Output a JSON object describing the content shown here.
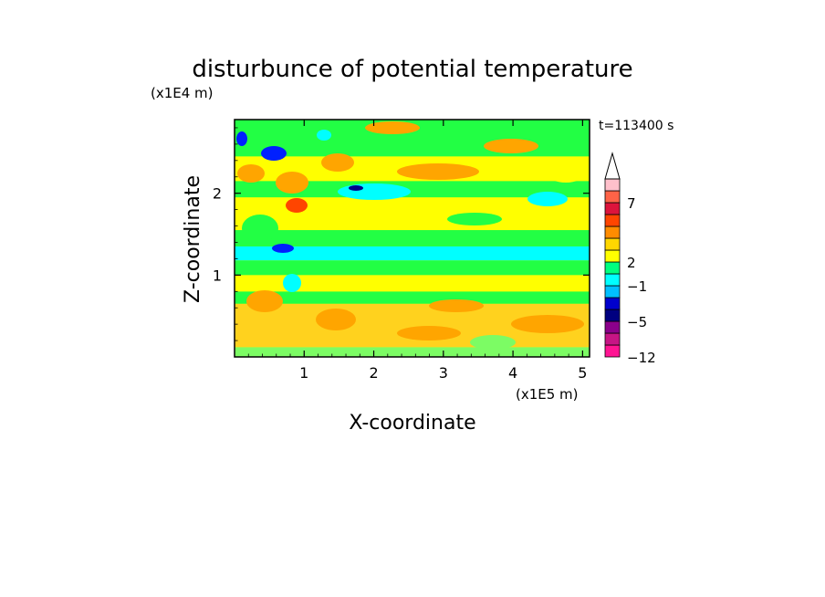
{
  "chart_data": {
    "type": "heatmap",
    "title": "disturbunce of potential temperature",
    "xlabel": "X-coordinate",
    "ylabel": "Z-coordinate",
    "x_unit": "(x1E5 m)",
    "y_unit": "(x1E4 m)",
    "time_label": "t=113400 s",
    "x_ticks": [
      "1",
      "2",
      "3",
      "4",
      "5"
    ],
    "x_tick_values": [
      1,
      2,
      3,
      4,
      5
    ],
    "y_ticks": [
      "1",
      "2"
    ],
    "y_tick_values": [
      1,
      2
    ],
    "xlim": [
      0,
      5.1
    ],
    "ylim": [
      0,
      2.9
    ],
    "colorbar": {
      "labels": [
        "7",
        "2",
        "−1",
        "−5",
        "−12"
      ],
      "label_levels": [
        7,
        2,
        -1,
        -5,
        -12
      ],
      "colors": [
        "#ff1493",
        "#c71585",
        "#8b008b",
        "#000080",
        "#0000cd",
        "#00bfff",
        "#00ffff",
        "#00ff7f",
        "#ffff00",
        "#ffd700",
        "#ff8c00",
        "#ff4500",
        "#dc143c",
        "#ff6347",
        "#ffc0cb"
      ]
    },
    "bands": [
      {
        "z": [
          0.0,
          0.12
        ],
        "level": "light-green"
      },
      {
        "z": [
          0.12,
          0.65
        ],
        "level": "orange-yellow"
      },
      {
        "z": [
          0.65,
          0.8
        ],
        "level": "green"
      },
      {
        "z": [
          0.8,
          1.0
        ],
        "level": "yellow"
      },
      {
        "z": [
          1.0,
          1.18
        ],
        "level": "green"
      },
      {
        "z": [
          1.18,
          1.35
        ],
        "level": "cyan"
      },
      {
        "z": [
          1.35,
          1.55
        ],
        "level": "green"
      },
      {
        "z": [
          1.55,
          1.95
        ],
        "level": "yellow"
      },
      {
        "z": [
          1.95,
          2.15
        ],
        "level": "green"
      },
      {
        "z": [
          2.15,
          2.45
        ],
        "level": "yellow"
      },
      {
        "z": [
          2.45,
          2.9
        ],
        "level": "green"
      }
    ]
  }
}
